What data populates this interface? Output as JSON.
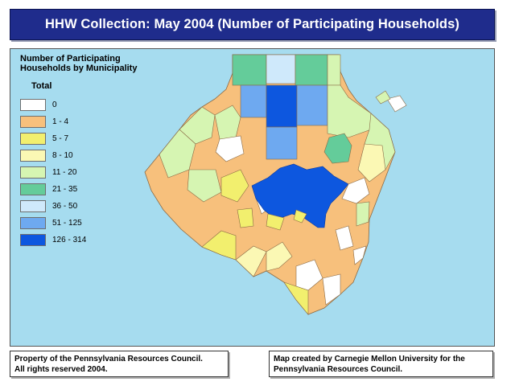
{
  "title": "HHW Collection: May 2004 (Number of Participating Households)",
  "legend": {
    "title_line1": "Number of Participating",
    "title_line2": "Households by Municipality",
    "subtitle": "Total",
    "classes": [
      {
        "label": "0",
        "color": "#ffffff"
      },
      {
        "label": "1 - 4",
        "color": "#f7c07c"
      },
      {
        "label": "5 - 7",
        "color": "#f2ef6e"
      },
      {
        "label": "8 - 10",
        "color": "#fbf8b4"
      },
      {
        "label": "11 - 20",
        "color": "#d6f5b2"
      },
      {
        "label": "21 - 35",
        "color": "#64cc9a"
      },
      {
        "label": "36 - 50",
        "color": "#cfe9fb"
      },
      {
        "label": "51 - 125",
        "color": "#6ea9f0"
      },
      {
        "label": "126 - 314",
        "color": "#0d57df"
      }
    ]
  },
  "map": {
    "water_color": "#a6dcef",
    "boundary_color": "#8a6a45"
  },
  "footer_left": {
    "line1": "Property of the Pennsylvania Resources Council.",
    "line2": "All rights reserved 2004."
  },
  "footer_right": {
    "line1": "Map created by Carnegie Mellon University for the",
    "line2": "Pennsylvania Resources Council."
  }
}
